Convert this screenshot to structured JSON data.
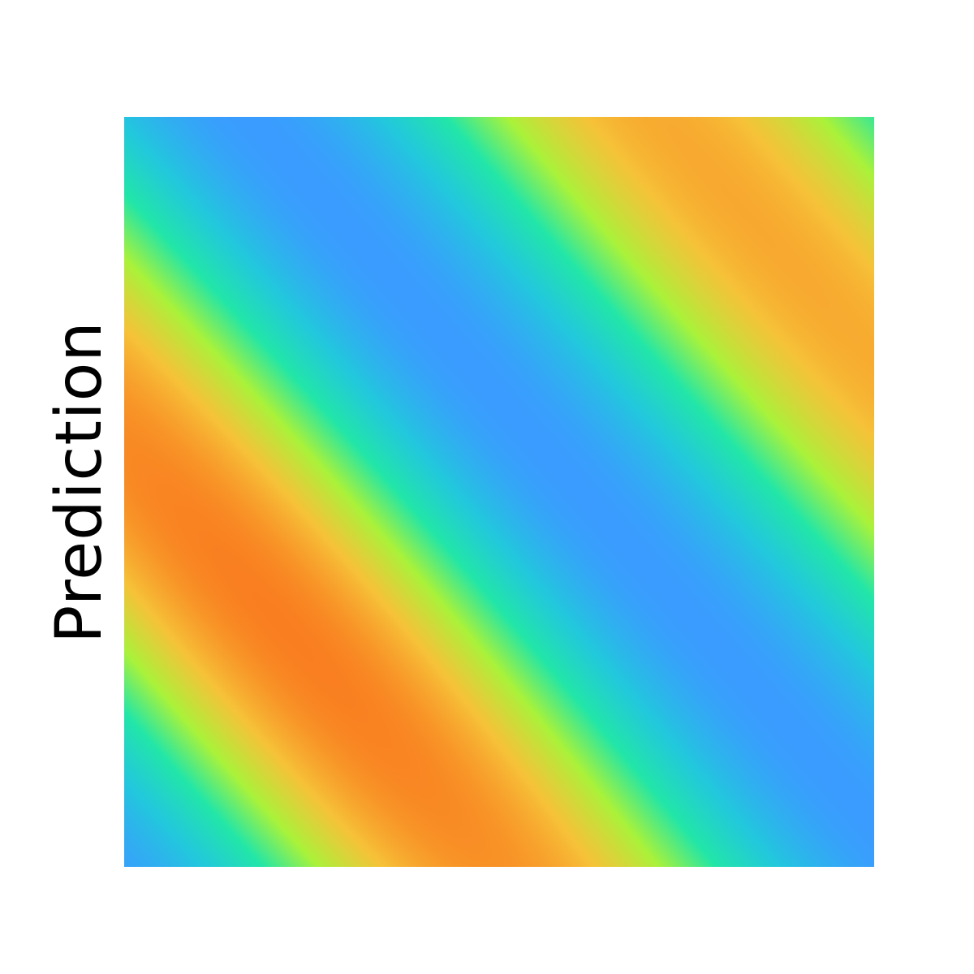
{
  "chart_data": {
    "type": "heatmap",
    "title": "",
    "xlabel": "",
    "ylabel": "Prediction",
    "grid": false,
    "legend": "none",
    "colormap": [
      "#3a9cff",
      "#22c8dd",
      "#22e6a8",
      "#aaf23a",
      "#f6c238",
      "#f97d1f"
    ],
    "field": {
      "description_free": true,
      "stripe_direction_xy": [
        0.53,
        0.85
      ],
      "wavelength_fraction": 0.95,
      "phase": 0.35,
      "amplitude_center": [
        0.28,
        0.62
      ],
      "low_value": 0.0,
      "high_value": 1.0
    }
  }
}
